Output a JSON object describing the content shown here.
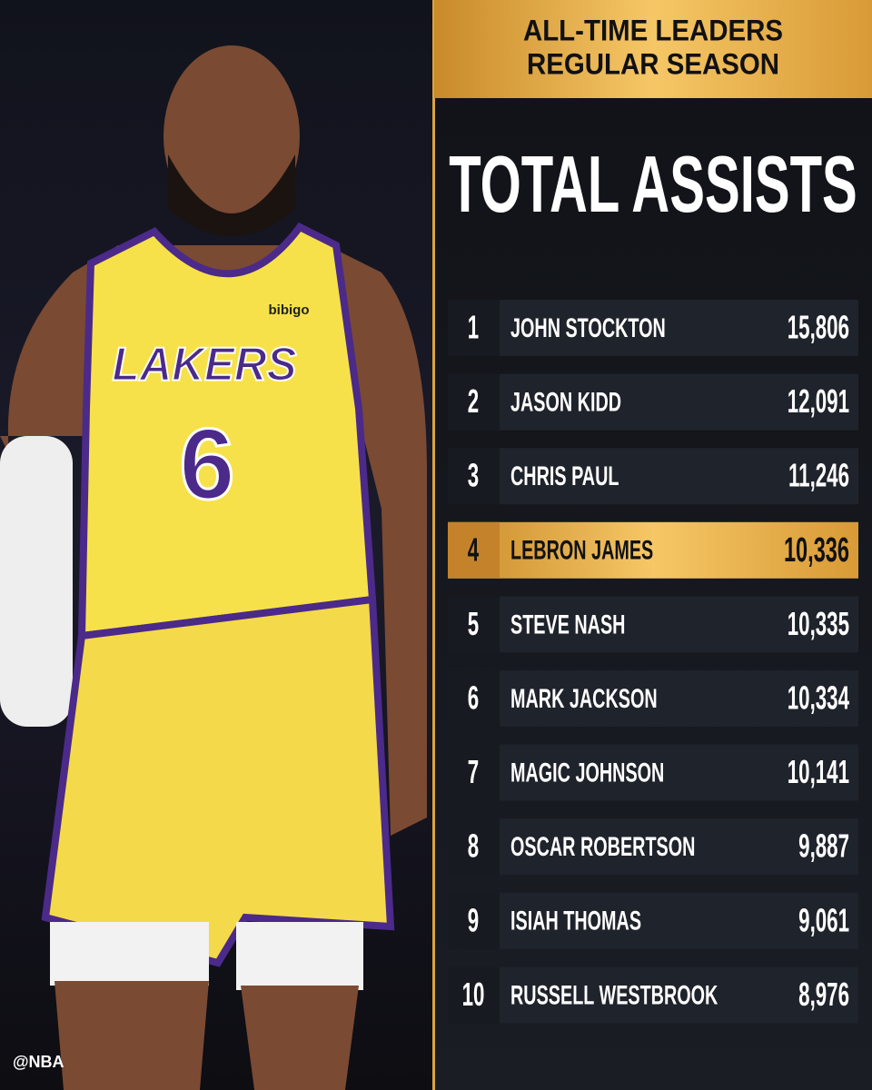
{
  "header": {
    "line1": "ALL-TIME LEADERS",
    "line2": "REGULAR SEASON"
  },
  "title": "TOTAL ASSISTS",
  "table": {
    "rows": [
      [
        "1",
        "JOHN STOCKTON",
        "15,806"
      ],
      [
        "2",
        "JASON KIDD",
        "12,091"
      ],
      [
        "3",
        "CHRIS PAUL",
        "11,246"
      ],
      [
        "4",
        "LEBRON JAMES",
        "10,336"
      ],
      [
        "5",
        "STEVE NASH",
        "10,335"
      ],
      [
        "6",
        "MARK JACKSON",
        "10,334"
      ],
      [
        "7",
        "MAGIC JOHNSON",
        "10,141"
      ],
      [
        "8",
        "OSCAR ROBERTSON",
        "9,887"
      ],
      [
        "9",
        "ISIAH THOMAS",
        "9,061"
      ],
      [
        "10",
        "RUSSELL WESTBROOK",
        "8,976"
      ]
    ],
    "highlight": 3
  },
  "photo": {
    "jersey_text": "LAKERS",
    "jersey_number": "6",
    "sponsor": "bibigo"
  },
  "watermark": "@NBA"
}
